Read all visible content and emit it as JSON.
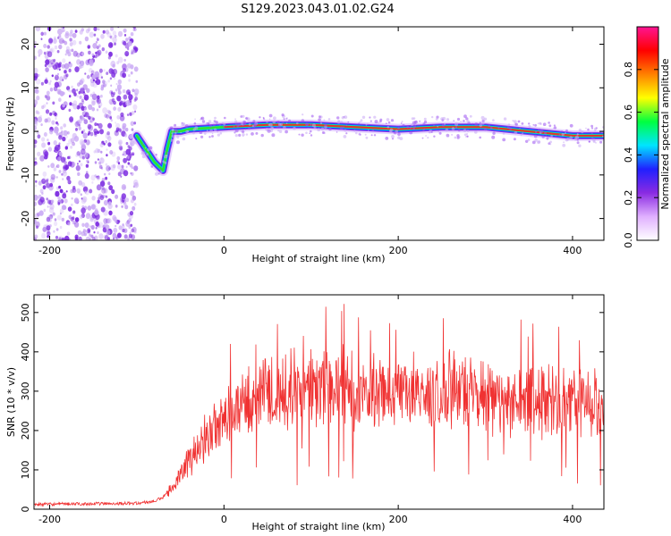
{
  "title": "S129.2023.043.01.02.G24",
  "colors": {
    "snr_line": "#f03232",
    "track_core": "#e8302a",
    "scatter": "#7a28e0"
  },
  "chart_data": [
    {
      "type": "heatmap",
      "xlabel": "Height of straight line (km)",
      "ylabel": "Frequency (Hz)",
      "xlim": [
        -218,
        436
      ],
      "ylim": [
        -25,
        24
      ],
      "xticks": [
        -200,
        0,
        200,
        400
      ],
      "yticks": [
        -20,
        -10,
        0,
        10,
        20
      ],
      "ytick_labels": [
        "-20",
        "-10",
        "0",
        "10",
        "20"
      ],
      "colorbar": {
        "label": "Normalized spectral amplitude",
        "range": [
          0,
          1
        ],
        "ticks": [
          0.0,
          0.2,
          0.4,
          0.6,
          0.8
        ],
        "tick_labels": [
          "0.0",
          "0.2",
          "0.4",
          "0.6",
          "0.8"
        ],
        "palette": [
          "#ffffff",
          "#e0b0ff",
          "#8a2be2",
          "#2020ff",
          "#00e5ff",
          "#00ff40",
          "#ffff00",
          "#ff8000",
          "#ff0000",
          "#ff1493"
        ]
      },
      "noise_region": {
        "x": [
          -218,
          -100
        ],
        "freq": [
          -25,
          24
        ]
      },
      "track": {
        "x": [
          -100,
          -90,
          -80,
          -70,
          -65,
          -60,
          -50,
          -40,
          0,
          50,
          100,
          150,
          200,
          250,
          300,
          350,
          400,
          436
        ],
        "freq": [
          -1,
          -4,
          -7,
          -9,
          -4,
          0,
          0,
          0.5,
          1,
          1.5,
          1.5,
          1,
          0.5,
          1,
          1,
          0,
          -1,
          -1
        ]
      }
    },
    {
      "type": "line",
      "xlabel": "Height of straight line (km)",
      "ylabel": "SNR (10 * v/v)",
      "xlim": [
        -218,
        436
      ],
      "ylim": [
        0,
        545
      ],
      "xticks": [
        -200,
        0,
        200,
        400
      ],
      "yticks": [
        0,
        100,
        200,
        300,
        400,
        500
      ],
      "series": [
        {
          "x": [
            -218,
            -150,
            -100,
            -80,
            -70,
            -60,
            -50,
            -40,
            -30,
            -20,
            -10,
            0,
            20,
            40,
            60,
            80,
            100,
            130,
            160,
            200,
            250,
            300,
            350,
            400,
            436
          ],
          "values": [
            12,
            14,
            15,
            20,
            30,
            55,
            85,
            120,
            160,
            190,
            210,
            230,
            265,
            290,
            300,
            305,
            300,
            310,
            300,
            285,
            295,
            285,
            280,
            270,
            260
          ]
        }
      ]
    }
  ]
}
